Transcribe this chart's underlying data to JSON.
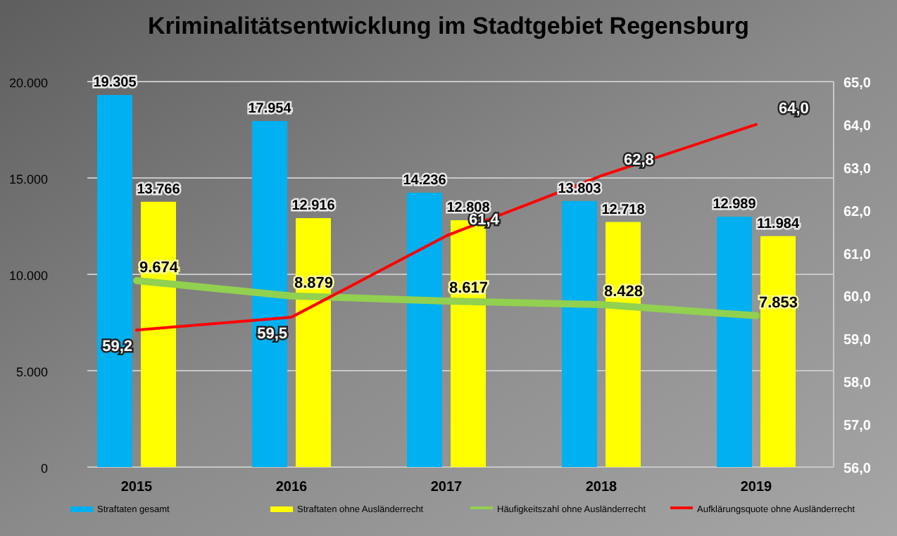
{
  "chart_data": {
    "type": "bar",
    "title": "Kriminalitätsentwicklung im Stadtgebiet Regensburg",
    "categories": [
      "2015",
      "2016",
      "2017",
      "2018",
      "2019"
    ],
    "series": [
      {
        "name": "Straftaten gesamt",
        "color": "#00b0f0",
        "values": [
          19305,
          17954,
          14236,
          13803,
          12989
        ],
        "value_labels": [
          "19.305",
          "17.954",
          "14.236",
          "13.803",
          "12.989"
        ]
      },
      {
        "name": "Straftaten ohne Ausländerrecht",
        "color": "#ffff00",
        "values": [
          13766,
          12916,
          12808,
          12718,
          11984
        ],
        "value_labels": [
          "13.766",
          "12.916",
          "12.808",
          "12.718",
          "11.984"
        ]
      },
      {
        "name": "Häufigkeitszahl ohne Ausländerrecht",
        "type": "line",
        "color": "#92d050",
        "values": [
          9674,
          8879,
          8617,
          8428,
          7853
        ],
        "value_labels": [
          "9.674",
          "8.879",
          "8.617",
          "8.428",
          "7.853"
        ]
      },
      {
        "name": "Aufklärungsquote ohne Ausländerrecht",
        "type": "line",
        "axis": "y2",
        "color": "#ff0000",
        "values": [
          59.2,
          59.5,
          61.4,
          62.8,
          64.0
        ],
        "value_labels": [
          "59,2",
          "59,5",
          "61,4",
          "62,8",
          "64,0"
        ]
      }
    ],
    "ylim": [
      0,
      20000
    ],
    "yticks": [
      {
        "value": 0,
        "label": "0"
      },
      {
        "value": 5000,
        "label": "5.000"
      },
      {
        "value": 10000,
        "label": "10.000"
      },
      {
        "value": 15000,
        "label": "15.000"
      },
      {
        "value": 20000,
        "label": "20.000"
      }
    ],
    "y2lim": [
      56,
      65
    ],
    "y2ticks": [
      {
        "value": 56,
        "label": "56,0"
      },
      {
        "value": 57,
        "label": "57,0"
      },
      {
        "value": 58,
        "label": "58,0"
      },
      {
        "value": 59,
        "label": "59,0"
      },
      {
        "value": 60,
        "label": "60,0"
      },
      {
        "value": 61,
        "label": "61,0"
      },
      {
        "value": 62,
        "label": "62,0"
      },
      {
        "value": 63,
        "label": "63,0"
      },
      {
        "value": 64,
        "label": "64,0"
      },
      {
        "value": 65,
        "label": "65,0"
      }
    ],
    "grid": "y",
    "legend": "bottom"
  }
}
